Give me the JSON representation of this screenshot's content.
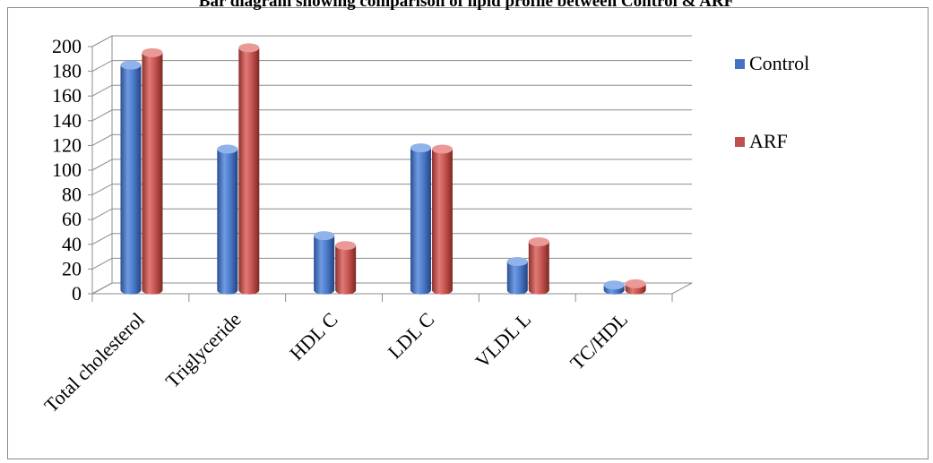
{
  "chart_data": {
    "type": "bar",
    "title": "Bar diagram showing comparison of lipid profile between Control & ARF",
    "categories": [
      "Total cholesterol",
      "Triglyceride",
      "HDL C",
      "LDL C",
      "VLDL L",
      "TC/HDL"
    ],
    "series": [
      {
        "name": "Control",
        "color": "#4472c4",
        "values": [
          182,
          114,
          44,
          115,
          23,
          4
        ]
      },
      {
        "name": "ARF",
        "color": "#c0504d",
        "values": [
          192,
          196,
          36,
          114,
          39,
          5
        ]
      }
    ],
    "y_ticks": [
      "0",
      "20",
      "40",
      "60",
      "80",
      "100",
      "120",
      "140",
      "160",
      "180",
      "200"
    ],
    "ylim": [
      0,
      200
    ],
    "grid": true,
    "legend_position": "right",
    "style": "3d-cylinder"
  }
}
